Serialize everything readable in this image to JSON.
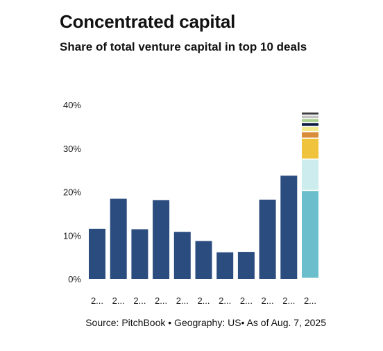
{
  "title": "Concentrated capital",
  "subtitle": "Share of total venture capital in top 10 deals",
  "source": "Source: PitchBook • Geography: US• As of Aug. 7, 2025",
  "colors": {
    "bar": "#2b4c7e",
    "stack": [
      "#6bbfcc",
      "#cdeced",
      "#f0c33c",
      "#d98d3a",
      "#f3ea8e",
      "#0b1a3c",
      "#a8d08d",
      "#c3c3c3",
      "#3f3f3f"
    ]
  },
  "chart_data": {
    "type": "bar",
    "categories": [
      "2...",
      "2...",
      "2...",
      "2...",
      "2...",
      "2...",
      "2...",
      "2...",
      "2...",
      "2...",
      "2..."
    ],
    "values": [
      11.5,
      18.4,
      11.4,
      18.1,
      10.8,
      8.7,
      6.1,
      6.2,
      18.2,
      23.7,
      null
    ],
    "stacked_last": [
      20.2,
      7.2,
      4.8,
      1.5,
      1.2,
      0.9,
      0.9,
      0.8,
      0.7
    ],
    "ylim": [
      0,
      40
    ],
    "yticks": [
      0,
      10,
      20,
      30,
      40
    ],
    "ytick_labels": [
      "0%",
      "10%",
      "20%",
      "30%",
      "40%"
    ],
    "grid": false,
    "legend": "none"
  }
}
